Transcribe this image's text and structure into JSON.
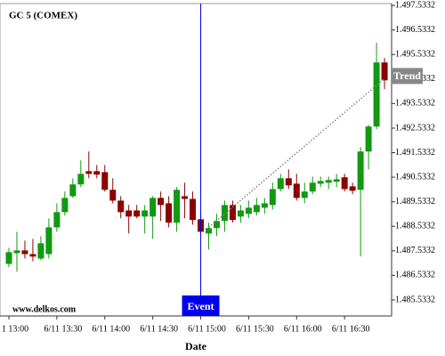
{
  "chart_data": {
    "type": "candlestick",
    "title": "GC 5 (COMEX)",
    "watermark": "www.delkos.com",
    "x_label": "Date",
    "up_color": "#119911",
    "down_color": "#8b0000",
    "open": [
      1.487,
      1.48744,
      1.48755,
      1.4874,
      1.48722,
      1.4874,
      1.48849,
      1.48911,
      1.48976,
      1.49024,
      1.49078,
      1.49078,
      1.49074,
      1.49002,
      1.48958,
      1.48918,
      1.48918,
      1.48893,
      1.48893,
      1.48969,
      1.48947,
      1.48868,
      1.48976,
      1.48965,
      1.48882,
      1.48824,
      1.48846,
      1.48875,
      1.4894,
      1.48893,
      1.48904,
      1.48911,
      1.48929,
      1.4894,
      1.49005,
      1.49049,
      1.49027,
      1.48969,
      1.48995,
      1.49027,
      1.49031,
      1.49035,
      1.49053,
      1.49016,
      1.49002,
      1.49158,
      1.4926,
      1.49521
    ],
    "high": [
      1.48766,
      1.48831,
      1.48795,
      1.48802,
      1.48813,
      1.48886,
      1.48947,
      1.48995,
      1.49049,
      1.49122,
      1.49158,
      1.49103,
      1.49103,
      1.49049,
      1.48976,
      1.4894,
      1.4894,
      1.4894,
      1.48976,
      1.48995,
      1.48976,
      1.49013,
      1.49031,
      1.48995,
      1.48904,
      1.48868,
      1.48904,
      1.48958,
      1.48958,
      1.4894,
      1.48958,
      1.48969,
      1.48969,
      1.49031,
      1.49067,
      1.49085,
      1.49067,
      1.49031,
      1.49056,
      1.49056,
      1.49056,
      1.49067,
      1.49067,
      1.49031,
      1.49176,
      1.49267,
      1.49601,
      1.49539
    ],
    "low": [
      1.48686,
      1.48668,
      1.48722,
      1.48711,
      1.48715,
      1.48722,
      1.48831,
      1.48897,
      1.48969,
      1.49013,
      1.49049,
      1.49049,
      1.48995,
      1.48947,
      1.48886,
      1.48824,
      1.48886,
      1.48824,
      1.48802,
      1.48875,
      1.48849,
      1.48831,
      1.48886,
      1.4886,
      1.48813,
      1.48759,
      1.48813,
      1.48831,
      1.48868,
      1.48868,
      1.48886,
      1.48897,
      1.48904,
      1.48922,
      1.48995,
      1.49005,
      1.48958,
      1.48947,
      1.48984,
      1.49013,
      1.49005,
      1.49013,
      1.48995,
      1.48984,
      1.4873,
      1.49085,
      1.49249,
      1.49412
    ],
    "close": [
      1.48748,
      1.48755,
      1.4874,
      1.4873,
      1.48784,
      1.48849,
      1.48911,
      1.48969,
      1.49024,
      1.49067,
      1.49067,
      1.49064,
      1.49002,
      1.48958,
      1.48911,
      1.48893,
      1.48893,
      1.48918,
      1.48969,
      1.4894,
      1.48868,
      1.49002,
      1.48965,
      1.48879,
      1.48831,
      1.48846,
      1.48875,
      1.4894,
      1.48879,
      1.48918,
      1.48929,
      1.4894,
      1.48947,
      1.49005,
      1.49049,
      1.4902,
      1.48969,
      1.48995,
      1.49031,
      1.49038,
      1.49042,
      1.49045,
      1.49005,
      1.48998,
      1.49158,
      1.4926,
      1.49521,
      1.49448
    ],
    "xticks": [
      {
        "value": 0,
        "label": "1 13:00"
      },
      {
        "value": 6,
        "label": "6/11 13:30"
      },
      {
        "value": 12,
        "label": "6/11 14:00"
      },
      {
        "value": 18,
        "label": "6/11 14:30"
      },
      {
        "value": 24,
        "label": "6/11 15:00"
      },
      {
        "value": 30,
        "label": "6/11 15:30"
      },
      {
        "value": 36,
        "label": "6/11 16:00"
      },
      {
        "value": 42,
        "label": "6/11 16:30"
      }
    ],
    "ylim": [
      1.48488,
      1.49761
    ],
    "yticks": [
      {
        "value": 1.4975332,
        "label": "1.497.5332"
      },
      {
        "value": 1.4965332,
        "label": "1.496.5332"
      },
      {
        "value": 1.4955332,
        "label": "1.495.5332"
      },
      {
        "value": 1.4945332,
        "label": "1.494.5332"
      },
      {
        "value": 1.4935332,
        "label": "1.493.5332"
      },
      {
        "value": 1.4925332,
        "label": "1.492.5332"
      },
      {
        "value": 1.4915332,
        "label": "1.491.5332"
      },
      {
        "value": 1.4905332,
        "label": "1.490.5332"
      },
      {
        "value": 1.4895332,
        "label": "1.489.5332"
      },
      {
        "value": 1.4885332,
        "label": "1.488.5332"
      },
      {
        "value": 1.4875332,
        "label": "1.487.5332"
      },
      {
        "value": 1.4865332,
        "label": "1.486.5332"
      },
      {
        "value": 1.4855332,
        "label": "1.485.5332"
      }
    ],
    "event": {
      "label": "Event",
      "index": 24,
      "color": "#0000ee"
    },
    "trend": {
      "label": "Trend",
      "start_index": 25,
      "start_value": 1.48849,
      "end_index": 47,
      "end_value": 1.49455,
      "color": "#888888"
    }
  }
}
